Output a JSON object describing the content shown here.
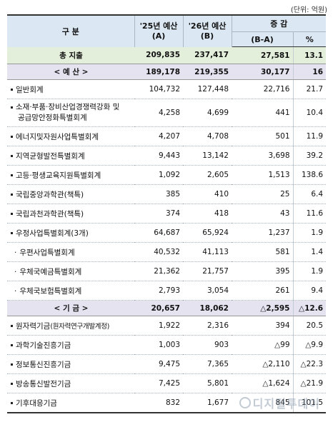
{
  "unit": "(단위: 억원)",
  "header": {
    "category": "구    분",
    "col_a_line1": "'25년 예산",
    "col_a_line2": "(A)",
    "col_b_line1": "'26년 예산",
    "col_b_line2": "(B)",
    "change": "증  감",
    "diff": "(B-A)",
    "pct": "%"
  },
  "total": {
    "name": "총 지출",
    "a": "209,835",
    "b": "237,417",
    "diff": "27,581",
    "pct": "13.1"
  },
  "budget_section": {
    "name": "< 예 산 >",
    "a": "189,178",
    "b": "219,355",
    "diff": "30,177",
    "pct": "16"
  },
  "budget_items": [
    {
      "name": "일반회계",
      "a": "104,732",
      "b": "127,448",
      "diff": "22,716",
      "pct": "21.7"
    },
    {
      "name_line1": "소재·부품·장비산업경쟁력강화 및",
      "name_line2": "공급망안정화특별회계",
      "a": "4,258",
      "b": "4,699",
      "diff": "441",
      "pct": "10.4"
    },
    {
      "name": "에너지및자원사업특별회계",
      "a": "4,207",
      "b": "4,708",
      "diff": "501",
      "pct": "11.9"
    },
    {
      "name": "지역균형발전특별회계",
      "a": "9,443",
      "b": "13,142",
      "diff": "3,698",
      "pct": "39.2"
    },
    {
      "name": "고등·평생교육지원특별회계",
      "a": "1,092",
      "b": "2,605",
      "diff": "1,513",
      "pct": "138.6"
    },
    {
      "name": "국립중앙과학관(책특)",
      "a": "385",
      "b": "410",
      "diff": "25",
      "pct": "6.4"
    },
    {
      "name": "국립과천과학관(책특)",
      "a": "374",
      "b": "418",
      "diff": "43",
      "pct": "11.6"
    },
    {
      "name": "우정사업특별회계(3개)",
      "a": "64,687",
      "b": "65,924",
      "diff": "1,237",
      "pct": "1.9"
    }
  ],
  "postal_subitems": [
    {
      "name": "우편사업특별회계",
      "a": "40,532",
      "b": "41,113",
      "diff": "581",
      "pct": "1.4"
    },
    {
      "name": "우체국예금특별회계",
      "a": "21,362",
      "b": "21,757",
      "diff": "395",
      "pct": "1.9"
    },
    {
      "name": "우체국보험특별회계",
      "a": "2,793",
      "b": "3,054",
      "diff": "261",
      "pct": "9.4"
    }
  ],
  "fund_section": {
    "name": "< 기 금 >",
    "a": "20,657",
    "b": "18,062",
    "diff": "△2,595",
    "pct": "△12.6"
  },
  "fund_items": [
    {
      "name": "원자력기금",
      "name_extra": "(원자력연구개발계정)",
      "a": "1,922",
      "b": "2,316",
      "diff": "394",
      "pct": "20.5"
    },
    {
      "name": "과학기술진흥기금",
      "a": "1,003",
      "b": "903",
      "diff": "△99",
      "pct": "△9.9"
    },
    {
      "name": "정보통신진흥기금",
      "a": "9,475",
      "b": "7,365",
      "diff": "△2,110",
      "pct": "△22.3"
    },
    {
      "name": "방송통신발전기금",
      "a": "7,425",
      "b": "5,801",
      "diff": "△1,624",
      "pct": "△21.9"
    },
    {
      "name": "기후대응기금",
      "a": "832",
      "b": "1,677",
      "diff": "845",
      "pct": "101.5"
    }
  ],
  "watermark": "디지털투데이",
  "colors": {
    "header_bg": "#dbe7f2",
    "total_bg": "#e3eedb",
    "section_bg": "#e6e3f1"
  }
}
